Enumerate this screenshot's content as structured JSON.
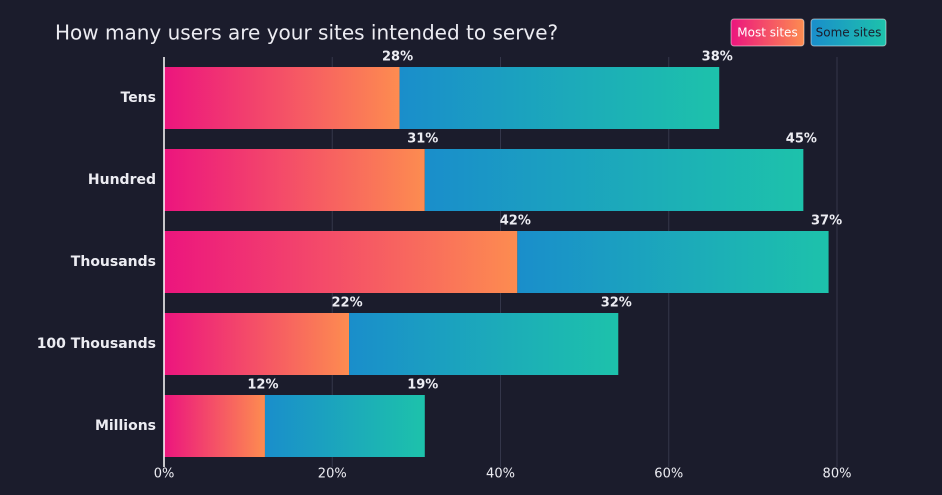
{
  "chart_data": {
    "type": "stacked-bar-horizontal",
    "title": "How many users are your sites intended to serve?",
    "categories": [
      "Tens",
      "Hundred",
      "Thousands",
      "100 Thousands",
      "Millions"
    ],
    "series": [
      {
        "name": "Most sites",
        "gradient": [
          "#ec157e",
          "#fd8c50"
        ],
        "values": [
          28,
          31,
          42,
          22,
          12
        ],
        "value_labels": [
          "28%",
          "31%",
          "42%",
          "22%",
          "12%"
        ]
      },
      {
        "name": "Some sites",
        "gradient": [
          "#1a8ecb",
          "#1dc2ab"
        ],
        "values": [
          38,
          45,
          37,
          32,
          19
        ],
        "value_labels": [
          "38%",
          "45%",
          "37%",
          "32%",
          "19%"
        ]
      }
    ],
    "xlim": [
      0,
      80
    ],
    "xticks": [
      {
        "value": 0,
        "label": "0%"
      },
      {
        "value": 20,
        "label": "20%"
      },
      {
        "value": 40,
        "label": "40%"
      },
      {
        "value": 60,
        "label": "60%"
      },
      {
        "value": 80,
        "label": "80%"
      }
    ],
    "grid": true,
    "legend": "top-right"
  }
}
